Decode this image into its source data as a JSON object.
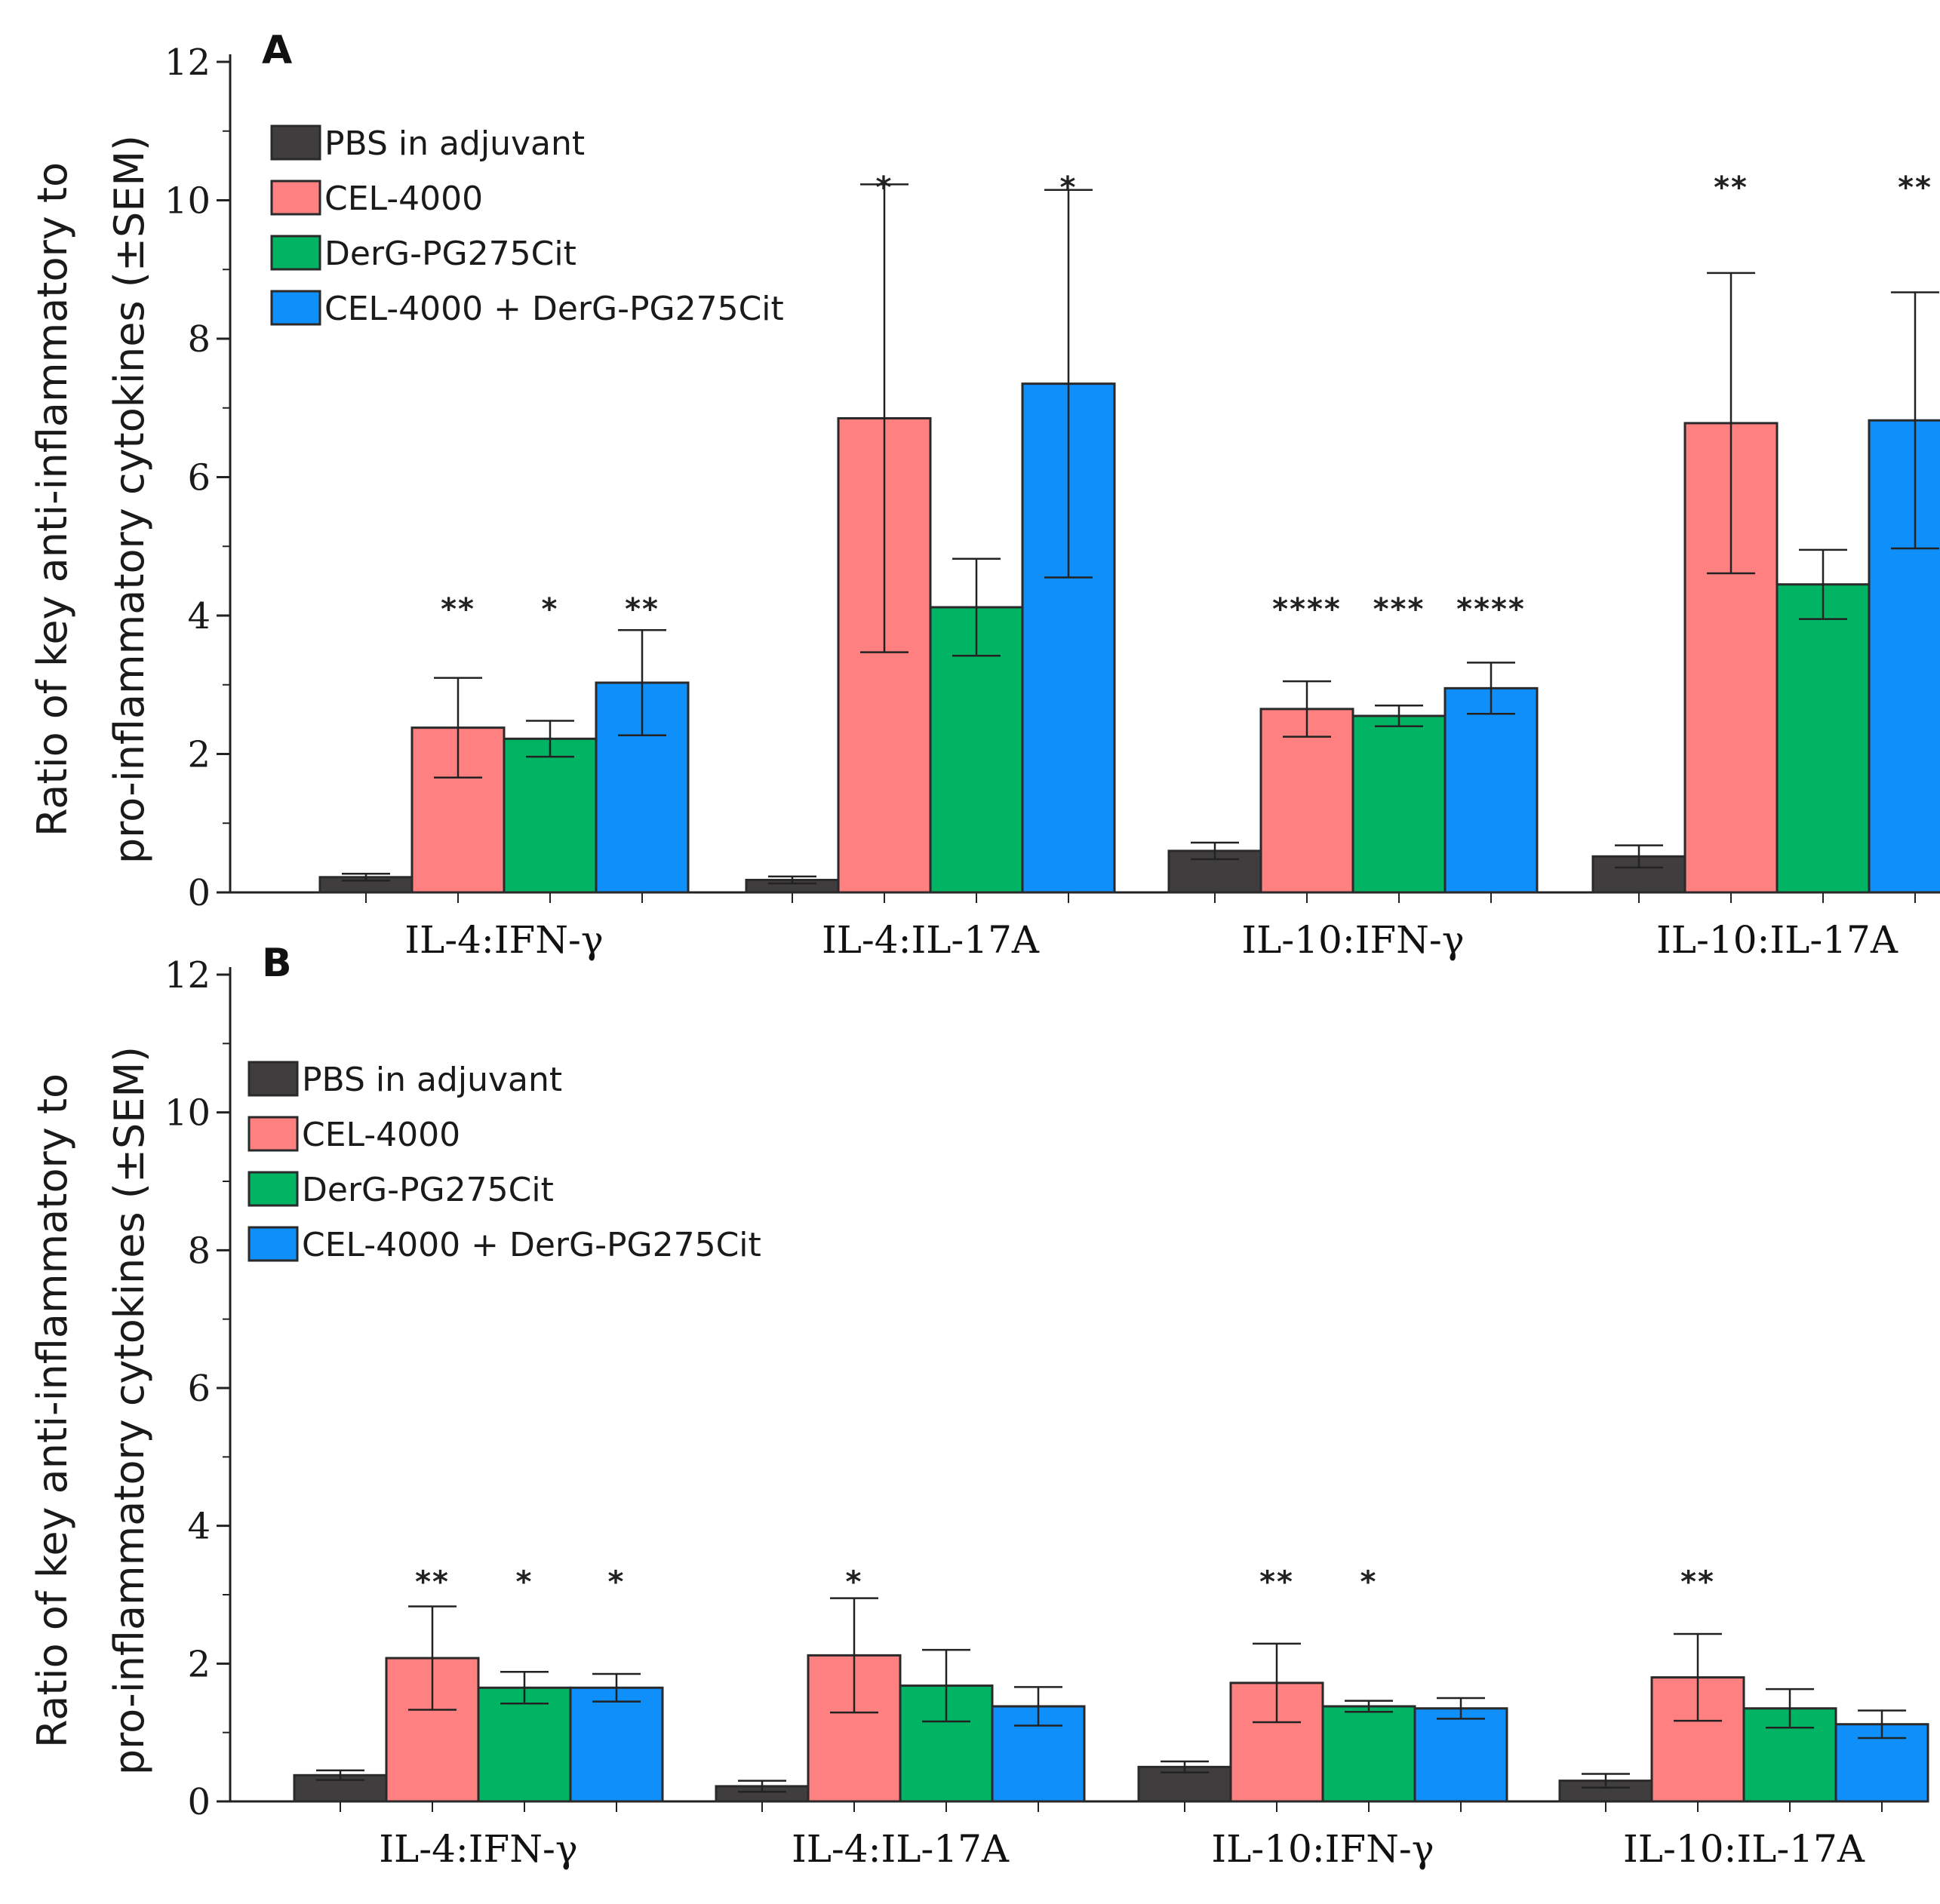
{
  "colors": {
    "PBS in adjuvant": "#3f3d3e",
    "CEL-4000": "#ff8080",
    "DerG-PG275Cit": "#00b464",
    "CEL-4000 + DerG-PG275Cit": "#0f8ffa",
    "axis": "#222222",
    "error_bar": "#222222"
  },
  "chart_data": [
    {
      "panel_label": "A",
      "type": "bar",
      "ylabel_line1": "Ratio of key anti-inflammatory to",
      "ylabel_line2": "pro-inflammatory cytokines (±SEM)",
      "ylim": [
        0,
        12
      ],
      "yticks": [
        0,
        2,
        4,
        6,
        8,
        10,
        12
      ],
      "yticks_labels": [
        "0",
        "2",
        "4",
        "6",
        "8",
        "10",
        "12"
      ],
      "legend_position": "top-left",
      "categories": [
        "IL-4:IFN-γ",
        "IL-4:IL-17A",
        "IL-10:IFN-γ",
        "IL-10:IL-17A"
      ],
      "series": [
        {
          "name": "PBS in adjuvant",
          "values": [
            0.22,
            0.18,
            0.6,
            0.52
          ],
          "errors": [
            0.05,
            0.05,
            0.12,
            0.16
          ],
          "significance": [
            "",
            "",
            "",
            ""
          ]
        },
        {
          "name": "CEL-4000",
          "values": [
            2.38,
            6.85,
            2.65,
            6.78
          ],
          "errors": [
            0.72,
            3.38,
            0.4,
            2.17
          ],
          "significance": [
            "**",
            "*",
            "****",
            "**"
          ]
        },
        {
          "name": "DerG-PG275Cit",
          "values": [
            2.22,
            4.12,
            2.55,
            4.45
          ],
          "errors": [
            0.26,
            0.7,
            0.15,
            0.5
          ],
          "significance": [
            "*",
            "",
            "***",
            ""
          ]
        },
        {
          "name": "CEL-4000 + DerG-PG275Cit",
          "values": [
            3.03,
            7.35,
            2.95,
            6.82
          ],
          "errors": [
            0.76,
            2.8,
            0.37,
            1.85
          ],
          "significance": [
            "**",
            "*",
            "****",
            "**"
          ]
        }
      ]
    },
    {
      "panel_label": "B",
      "type": "bar",
      "ylabel_line1": "Ratio of key anti-inflammatory to",
      "ylabel_line2": "pro-inflammatory cytokines (±SEM)",
      "ylim": [
        0,
        12
      ],
      "yticks": [
        0,
        2,
        4,
        6,
        8,
        10,
        12
      ],
      "yticks_labels": [
        "0",
        "2",
        "4",
        "6",
        "8",
        "10",
        "12"
      ],
      "legend_position": "top-left",
      "categories": [
        "IL-4:IFN-γ",
        "IL-4:IL-17A",
        "IL-10:IFN-γ",
        "IL-10:IL-17A"
      ],
      "series": [
        {
          "name": "PBS in adjuvant",
          "values": [
            0.38,
            0.22,
            0.5,
            0.3
          ],
          "errors": [
            0.07,
            0.08,
            0.08,
            0.1
          ],
          "significance": [
            "",
            "",
            "",
            ""
          ]
        },
        {
          "name": "CEL-4000",
          "values": [
            2.08,
            2.12,
            1.72,
            1.8
          ],
          "errors": [
            0.75,
            0.83,
            0.57,
            0.63
          ],
          "significance": [
            "**",
            "*",
            "**",
            "**"
          ]
        },
        {
          "name": "DerG-PG275Cit",
          "values": [
            1.65,
            1.68,
            1.38,
            1.35
          ],
          "errors": [
            0.23,
            0.52,
            0.08,
            0.28
          ],
          "significance": [
            "*",
            "",
            "*",
            ""
          ]
        },
        {
          "name": "CEL-4000 + DerG-PG275Cit",
          "values": [
            1.65,
            1.38,
            1.35,
            1.12
          ],
          "errors": [
            0.2,
            0.28,
            0.15,
            0.2
          ],
          "significance": [
            "*",
            "",
            "",
            ""
          ]
        }
      ]
    }
  ]
}
